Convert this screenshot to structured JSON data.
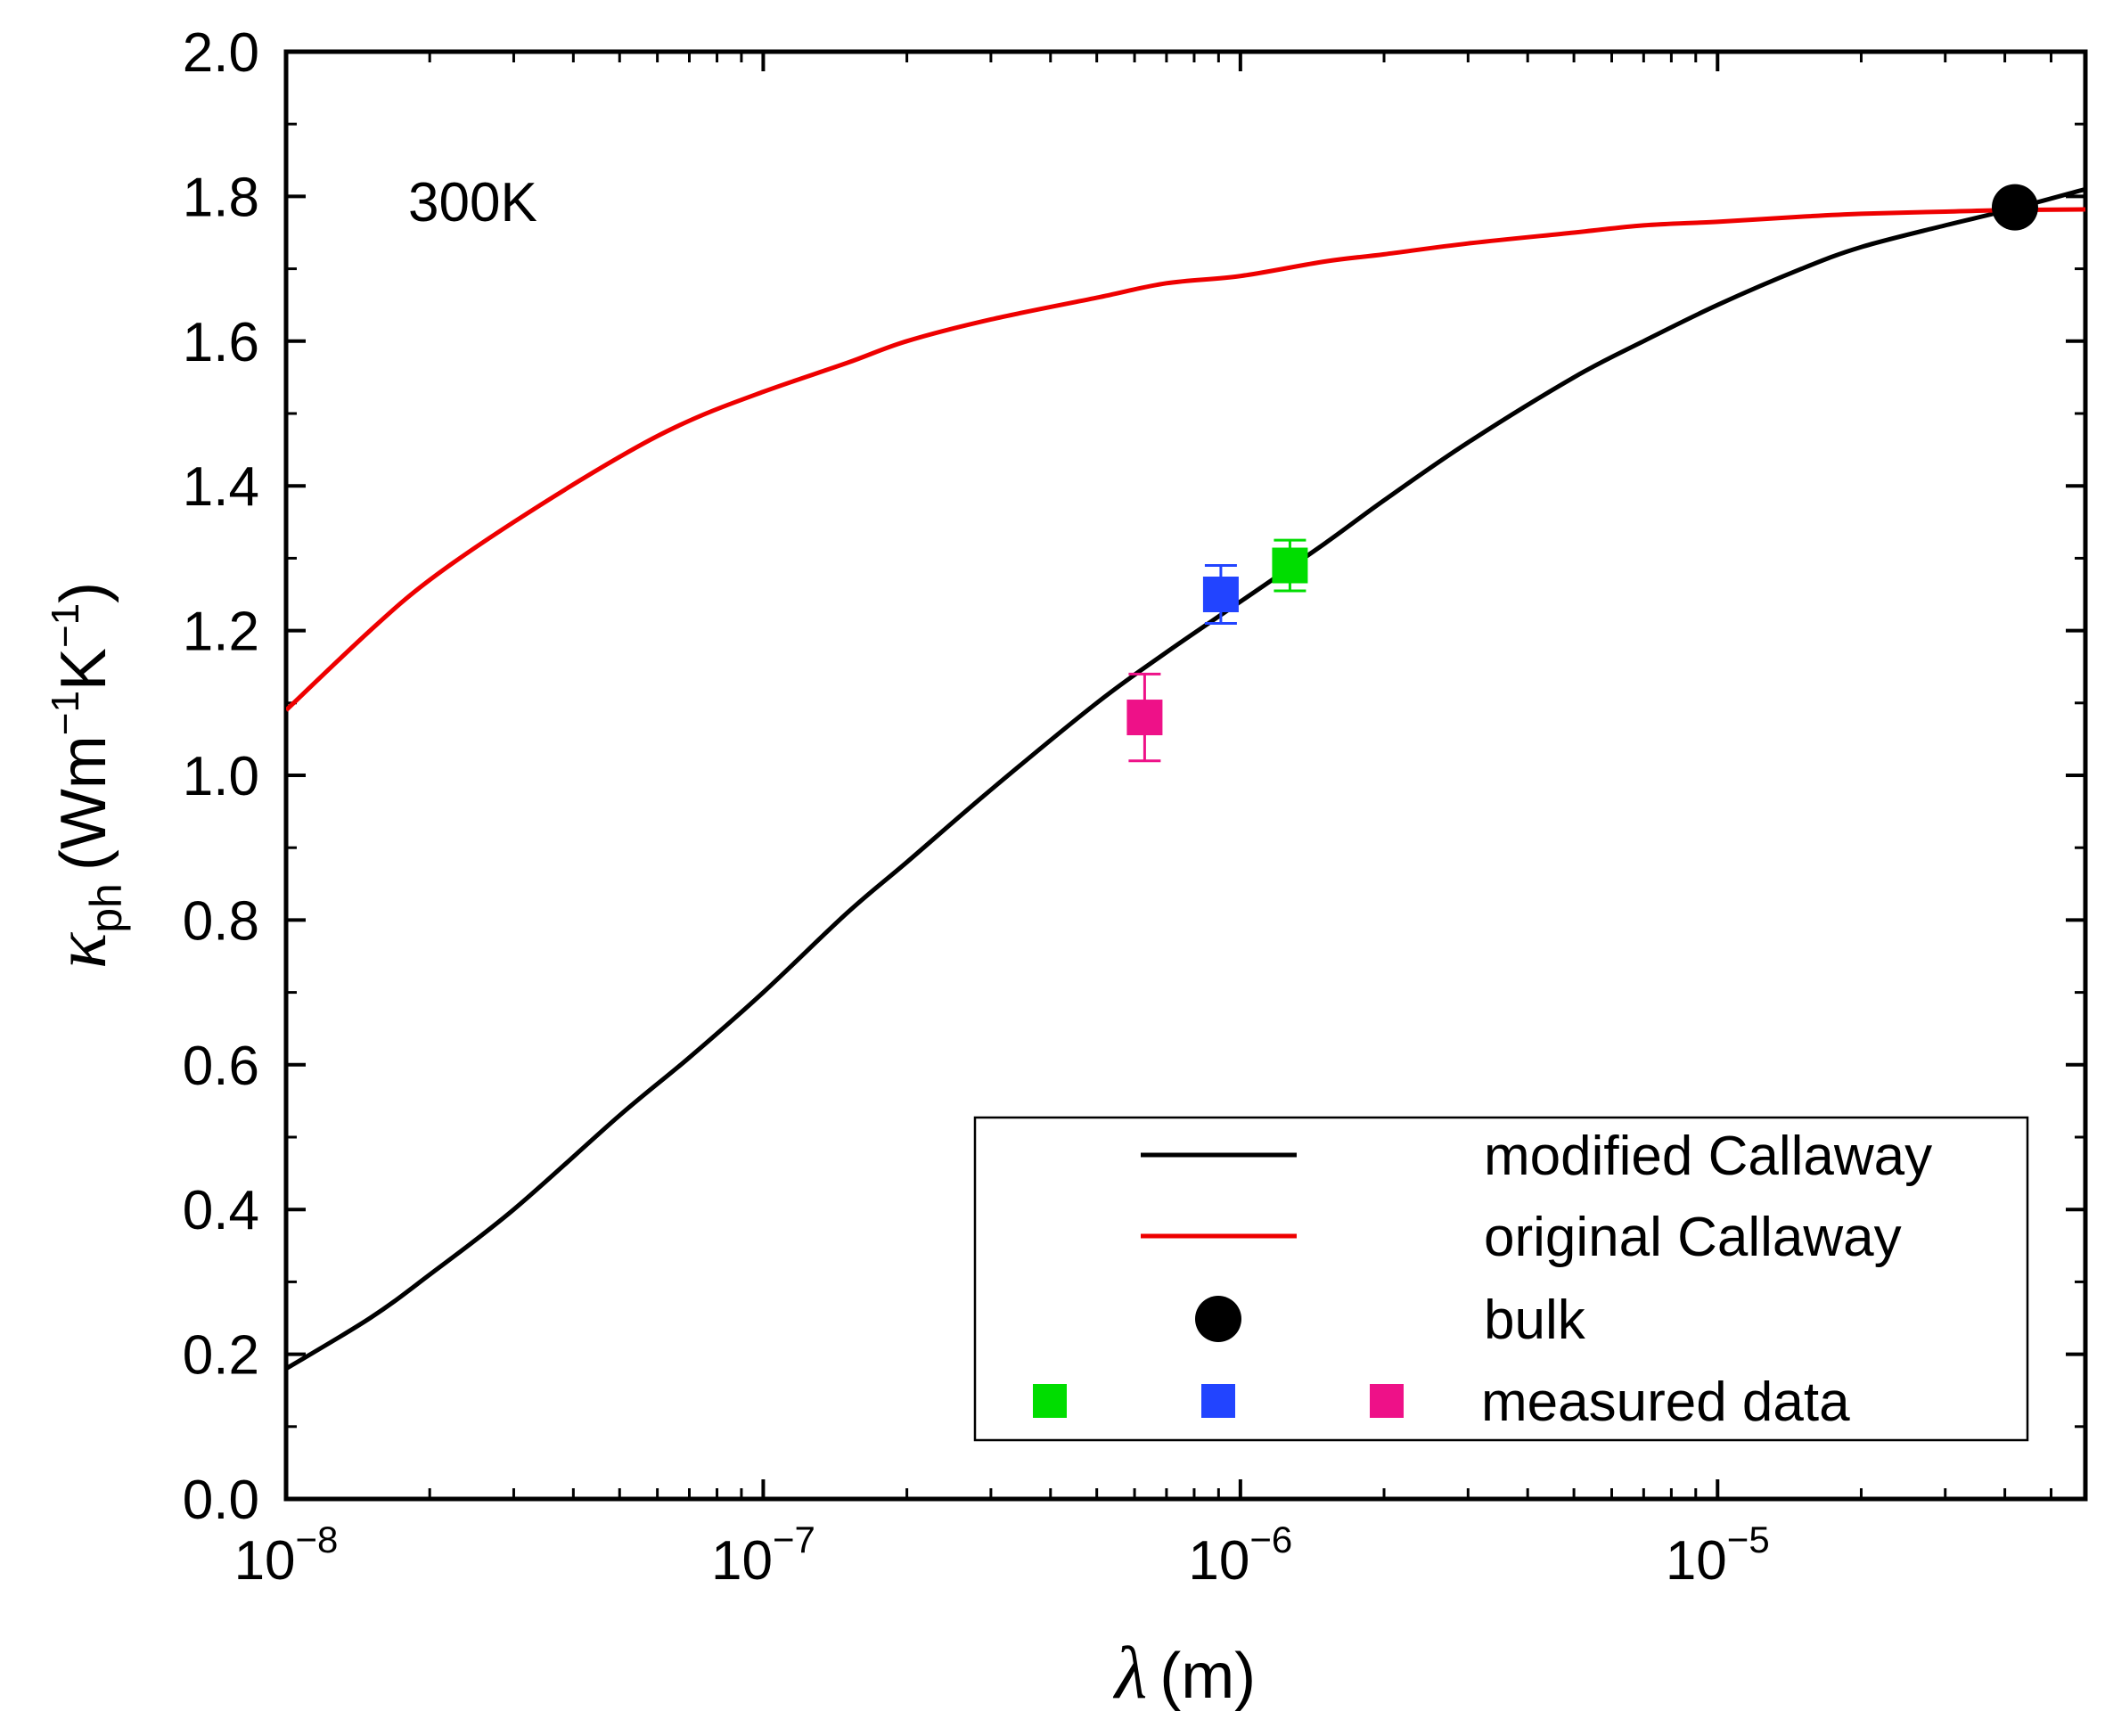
{
  "chart_data": {
    "type": "line",
    "title": "",
    "annotation": "300K",
    "xlabel": {
      "symbol": "λ",
      "unit": "(m)"
    },
    "ylabel": {
      "symbol": "κ",
      "subscript": "ph",
      "unit_open": "(Wm",
      "exp1": "−1",
      "unit_mid": "K",
      "exp2": "−1",
      "unit_close": ")"
    },
    "x_scale": "log",
    "xlim": [
      1e-08,
      5.9e-05
    ],
    "ylim": [
      0.0,
      2.0
    ],
    "x_ticks": [
      {
        "value": 1e-08,
        "base": "10",
        "exp": "−8"
      },
      {
        "value": 1e-07,
        "base": "10",
        "exp": "−7"
      },
      {
        "value": 1e-06,
        "base": "10",
        "exp": "−6"
      },
      {
        "value": 1e-05,
        "base": "10",
        "exp": "−5"
      }
    ],
    "y_ticks": [
      "0.0",
      "0.2",
      "0.4",
      "0.6",
      "0.8",
      "1.0",
      "1.2",
      "1.4",
      "1.6",
      "1.8",
      "2.0"
    ],
    "series": [
      {
        "name": "modified Callaway",
        "color": "#000000",
        "x": [
          1e-08,
          1.5e-08,
          2e-08,
          3e-08,
          5e-08,
          7e-08,
          1e-07,
          1.5e-07,
          2e-07,
          3e-07,
          5e-07,
          7e-07,
          1e-06,
          1.5e-06,
          2e-06,
          3e-06,
          5e-06,
          7e-06,
          1e-05,
          1.5e-05,
          2e-05,
          3e-05,
          4e-05,
          5.9e-05
        ],
        "y": [
          0.18,
          0.25,
          0.31,
          0.4,
          0.53,
          0.61,
          0.7,
          0.81,
          0.88,
          0.98,
          1.1,
          1.17,
          1.24,
          1.32,
          1.38,
          1.46,
          1.55,
          1.6,
          1.65,
          1.7,
          1.73,
          1.76,
          1.78,
          1.81
        ]
      },
      {
        "name": "original Callaway",
        "color": "#ee0000",
        "x": [
          1e-08,
          1.5e-08,
          2e-08,
          3e-08,
          5e-08,
          7e-08,
          1e-07,
          1.5e-07,
          2e-07,
          3e-07,
          5e-07,
          7e-07,
          1e-06,
          1.5e-06,
          2e-06,
          3e-06,
          5e-06,
          7e-06,
          1e-05,
          1.5e-05,
          2e-05,
          3e-05,
          4e-05,
          5.9e-05
        ],
        "y": [
          1.09,
          1.2,
          1.27,
          1.35,
          1.44,
          1.49,
          1.53,
          1.57,
          1.6,
          1.63,
          1.66,
          1.68,
          1.69,
          1.71,
          1.72,
          1.735,
          1.75,
          1.76,
          1.765,
          1.772,
          1.776,
          1.779,
          1.781,
          1.782
        ]
      }
    ],
    "bulk": {
      "name": "bulk",
      "x": 4.2e-05,
      "y": 1.785,
      "color": "#000000"
    },
    "measured": {
      "name": "measured data",
      "points": [
        {
          "x": 1.27e-06,
          "y": 1.29,
          "err": 0.035,
          "color": "#00dd00"
        },
        {
          "x": 9.1e-07,
          "y": 1.25,
          "err": 0.04,
          "color": "#2244ff"
        },
        {
          "x": 6.3e-07,
          "y": 1.08,
          "err": 0.06,
          "color": "#ee1188"
        }
      ]
    },
    "legend": {
      "position": "bottom-right",
      "entries": [
        {
          "label": "modified Callaway",
          "kind": "line",
          "color": "#000000"
        },
        {
          "label": "original Callaway",
          "kind": "line",
          "color": "#ee0000"
        },
        {
          "label": "bulk",
          "kind": "circle",
          "color": "#000000"
        },
        {
          "label": "measured data",
          "kind": "squares",
          "colors": [
            "#00dd00",
            "#2244ff",
            "#ee1188"
          ]
        }
      ]
    }
  }
}
